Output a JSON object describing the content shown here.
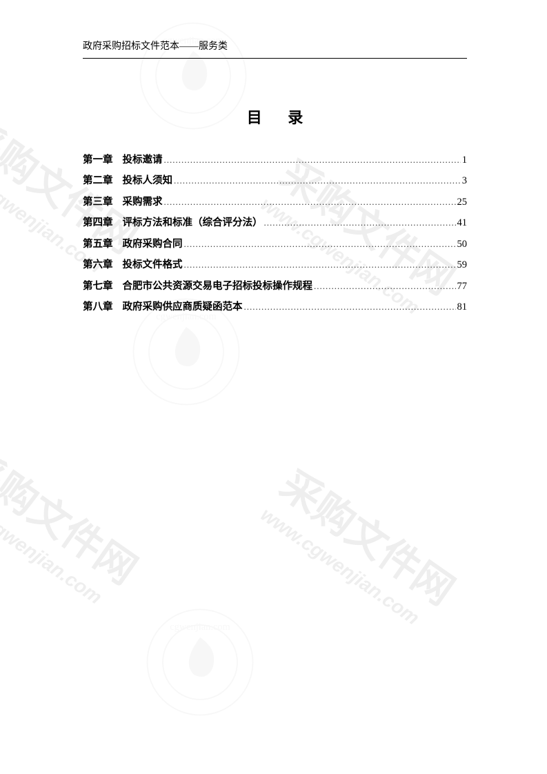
{
  "header": {
    "text": "政府采购招标文件范本——服务类"
  },
  "title": "目 录",
  "toc": [
    {
      "chapter": "第一章",
      "name": "投标邀请",
      "page": "1"
    },
    {
      "chapter": "第二章",
      "name": "投标人须知",
      "page": "3"
    },
    {
      "chapter": "第三章",
      "name": "采购需求",
      "page": "25"
    },
    {
      "chapter": "第四章",
      "name": "评标方法和标准（综合评分法）",
      "page": "41"
    },
    {
      "chapter": "第五章",
      "name": "政府采购合同",
      "page": "50"
    },
    {
      "chapter": "第六章",
      "name": "投标文件格式",
      "page": "59"
    },
    {
      "chapter": "第七章",
      "name": "合肥市公共资源交易电子招标投标操作规程",
      "page": "77"
    },
    {
      "chapter": "第八章",
      "name": "政府采购供应商质疑函范本",
      "page": "81"
    }
  ],
  "watermark": {
    "main_text": "采购文件网",
    "url_text": "www.cgwenjian.com",
    "text_color": "#888888",
    "main_fontsize": 58,
    "url_fontsize": 28,
    "background_color": "#ffffff"
  }
}
